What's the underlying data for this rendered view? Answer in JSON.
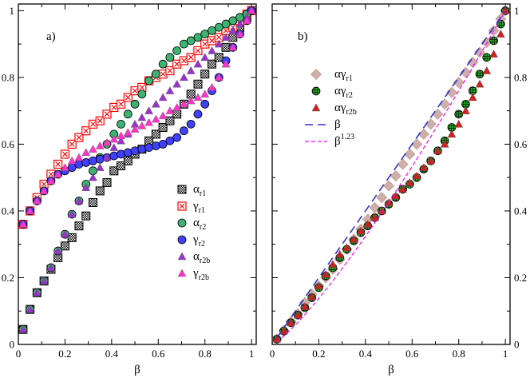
{
  "chart_data": [
    {
      "panel_label": "a)",
      "type": "scatter",
      "xlabel": "β",
      "xlim": [
        0,
        1.02
      ],
      "ylim": [
        0,
        1.02
      ],
      "xticks": [
        0,
        0.2,
        0.4,
        0.6,
        0.8,
        1
      ],
      "yticks": [
        0,
        0.2,
        0.4,
        0.6,
        0.8,
        1
      ],
      "xtick_labels": [
        "0",
        "0.2",
        "0.4",
        "0.6",
        "0.8",
        "1"
      ],
      "ytick_labels": [
        "0",
        "0.2",
        "0.4",
        "0.6",
        "0.8",
        "1"
      ],
      "legend_position": "center-right",
      "series": [
        {
          "name": "α",
          "sub": "r1",
          "marker": "checker-square",
          "color": "#000000",
          "x": [
            0.02,
            0.05,
            0.08,
            0.11,
            0.14,
            0.17,
            0.2,
            0.23,
            0.26,
            0.29,
            0.32,
            0.35,
            0.38,
            0.41,
            0.44,
            0.47,
            0.5,
            0.53,
            0.56,
            0.59,
            0.62,
            0.65,
            0.68,
            0.71,
            0.74,
            0.77,
            0.8,
            0.83,
            0.86,
            0.89,
            0.92,
            0.95,
            0.98,
            1.0
          ],
          "y": [
            0.045,
            0.105,
            0.155,
            0.19,
            0.225,
            0.26,
            0.295,
            0.32,
            0.355,
            0.385,
            0.425,
            0.46,
            0.485,
            0.52,
            0.535,
            0.55,
            0.57,
            0.585,
            0.61,
            0.63,
            0.65,
            0.67,
            0.69,
            0.72,
            0.75,
            0.78,
            0.81,
            0.84,
            0.86,
            0.89,
            0.92,
            0.95,
            0.98,
            1.0
          ]
        },
        {
          "name": "γ",
          "sub": "r1",
          "marker": "cross-square",
          "color": "#ff0000",
          "x": [
            0.02,
            0.05,
            0.08,
            0.11,
            0.14,
            0.17,
            0.2,
            0.23,
            0.26,
            0.29,
            0.32,
            0.35,
            0.38,
            0.41,
            0.44,
            0.47,
            0.5,
            0.53,
            0.56,
            0.59,
            0.62,
            0.65,
            0.68,
            0.71,
            0.74,
            0.77,
            0.8,
            0.83,
            0.86,
            0.89,
            0.92,
            0.95,
            0.98,
            1.0
          ],
          "y": [
            0.36,
            0.4,
            0.44,
            0.48,
            0.51,
            0.54,
            0.57,
            0.6,
            0.62,
            0.64,
            0.66,
            0.67,
            0.69,
            0.71,
            0.72,
            0.74,
            0.76,
            0.77,
            0.79,
            0.8,
            0.81,
            0.82,
            0.84,
            0.85,
            0.86,
            0.88,
            0.9,
            0.91,
            0.92,
            0.94,
            0.95,
            0.97,
            0.99,
            1.0
          ]
        },
        {
          "name": "α",
          "sub": "r2",
          "marker": "circle",
          "color": "#3cb371",
          "x": [
            0.02,
            0.05,
            0.08,
            0.11,
            0.14,
            0.17,
            0.2,
            0.23,
            0.26,
            0.29,
            0.32,
            0.35,
            0.38,
            0.41,
            0.44,
            0.47,
            0.5,
            0.53,
            0.56,
            0.59,
            0.62,
            0.65,
            0.68,
            0.71,
            0.74,
            0.77,
            0.8,
            0.83,
            0.86,
            0.89,
            0.92,
            0.95,
            0.98,
            1.0
          ],
          "y": [
            0.045,
            0.105,
            0.155,
            0.19,
            0.23,
            0.28,
            0.33,
            0.39,
            0.43,
            0.48,
            0.52,
            0.56,
            0.6,
            0.63,
            0.66,
            0.69,
            0.72,
            0.75,
            0.79,
            0.81,
            0.84,
            0.86,
            0.88,
            0.9,
            0.91,
            0.92,
            0.93,
            0.94,
            0.95,
            0.96,
            0.97,
            0.98,
            0.99,
            1.0
          ]
        },
        {
          "name": "γ",
          "sub": "r2",
          "marker": "circle",
          "color": "#4040ff",
          "x": [
            0.02,
            0.05,
            0.08,
            0.11,
            0.14,
            0.17,
            0.2,
            0.23,
            0.26,
            0.29,
            0.32,
            0.35,
            0.38,
            0.41,
            0.44,
            0.47,
            0.5,
            0.53,
            0.56,
            0.59,
            0.62,
            0.65,
            0.68,
            0.71,
            0.74,
            0.77,
            0.8,
            0.83,
            0.86,
            0.89,
            0.92,
            0.95,
            0.98,
            1.0
          ],
          "y": [
            0.36,
            0.4,
            0.43,
            0.46,
            0.49,
            0.51,
            0.52,
            0.53,
            0.54,
            0.545,
            0.55,
            0.555,
            0.56,
            0.565,
            0.57,
            0.575,
            0.58,
            0.585,
            0.59,
            0.595,
            0.6,
            0.61,
            0.62,
            0.64,
            0.66,
            0.69,
            0.72,
            0.76,
            0.8,
            0.85,
            0.89,
            0.93,
            0.97,
            1.0
          ]
        },
        {
          "name": "α",
          "sub": "r2b",
          "marker": "triangle",
          "color": "#9933cc",
          "x": [
            0.02,
            0.05,
            0.08,
            0.11,
            0.14,
            0.17,
            0.2,
            0.23,
            0.26,
            0.29,
            0.32,
            0.35,
            0.38,
            0.41,
            0.44,
            0.47,
            0.5,
            0.53,
            0.56,
            0.59,
            0.62,
            0.65,
            0.68,
            0.71,
            0.74,
            0.77,
            0.8,
            0.83,
            0.86,
            0.89,
            0.92,
            0.95,
            0.98,
            1.0
          ],
          "y": [
            0.045,
            0.105,
            0.155,
            0.19,
            0.23,
            0.28,
            0.33,
            0.39,
            0.43,
            0.47,
            0.5,
            0.53,
            0.56,
            0.59,
            0.61,
            0.63,
            0.66,
            0.68,
            0.7,
            0.72,
            0.74,
            0.76,
            0.78,
            0.8,
            0.82,
            0.84,
            0.86,
            0.88,
            0.9,
            0.92,
            0.94,
            0.96,
            0.98,
            1.0
          ]
        },
        {
          "name": "γ",
          "sub": "r2b",
          "marker": "triangle",
          "color": "#ff33cc",
          "x": [
            0.02,
            0.05,
            0.08,
            0.11,
            0.14,
            0.17,
            0.2,
            0.23,
            0.26,
            0.29,
            0.32,
            0.35,
            0.38,
            0.41,
            0.44,
            0.47,
            0.5,
            0.53,
            0.56,
            0.59,
            0.62,
            0.65,
            0.68,
            0.71,
            0.74,
            0.77,
            0.8,
            0.83,
            0.86,
            0.89,
            0.92,
            0.95,
            0.98,
            1.0
          ],
          "y": [
            0.36,
            0.4,
            0.43,
            0.46,
            0.49,
            0.51,
            0.53,
            0.55,
            0.56,
            0.575,
            0.585,
            0.595,
            0.605,
            0.615,
            0.625,
            0.635,
            0.645,
            0.655,
            0.665,
            0.675,
            0.685,
            0.7,
            0.71,
            0.72,
            0.73,
            0.74,
            0.75,
            0.77,
            0.8,
            0.84,
            0.89,
            0.93,
            0.97,
            1.0
          ]
        }
      ]
    },
    {
      "panel_label": "b)",
      "type": "scatter",
      "xlabel": "β",
      "xlim": [
        0,
        1.02
      ],
      "ylim": [
        0,
        1.02
      ],
      "xticks": [
        0,
        0.2,
        0.4,
        0.6,
        0.8,
        1
      ],
      "yticks": [
        0,
        0.2,
        0.4,
        0.6,
        0.8,
        1
      ],
      "xtick_labels": [
        "0",
        "0.2",
        "0.4",
        "0.6",
        "0.8",
        "1"
      ],
      "ytick_labels": [
        "0",
        "0.2",
        "0.4",
        "0.6",
        "0.8",
        "1"
      ],
      "y_ticks_side": "right",
      "legend_position": "upper-left",
      "series": [
        {
          "name": "αγ",
          "sub": "r1",
          "marker": "diamond",
          "color": "#c8a8a0",
          "x": [
            0.02,
            0.05,
            0.08,
            0.11,
            0.14,
            0.17,
            0.2,
            0.23,
            0.26,
            0.29,
            0.32,
            0.35,
            0.38,
            0.41,
            0.44,
            0.47,
            0.5,
            0.53,
            0.56,
            0.59,
            0.62,
            0.65,
            0.68,
            0.71,
            0.74,
            0.77,
            0.8,
            0.83,
            0.86,
            0.89,
            0.92,
            0.95,
            0.98,
            1.0
          ],
          "y": [
            0.016,
            0.042,
            0.068,
            0.092,
            0.125,
            0.15,
            0.175,
            0.2,
            0.225,
            0.255,
            0.285,
            0.315,
            0.345,
            0.375,
            0.41,
            0.44,
            0.475,
            0.505,
            0.54,
            0.57,
            0.6,
            0.63,
            0.66,
            0.69,
            0.72,
            0.755,
            0.785,
            0.815,
            0.845,
            0.875,
            0.905,
            0.94,
            0.975,
            1.0
          ]
        },
        {
          "name": "αγ",
          "sub": "r2",
          "marker": "hatched-circle",
          "color": "#22aa22",
          "x": [
            0.02,
            0.05,
            0.08,
            0.11,
            0.14,
            0.17,
            0.2,
            0.23,
            0.26,
            0.29,
            0.32,
            0.35,
            0.38,
            0.41,
            0.44,
            0.47,
            0.5,
            0.53,
            0.56,
            0.59,
            0.62,
            0.65,
            0.68,
            0.71,
            0.74,
            0.77,
            0.8,
            0.83,
            0.86,
            0.89,
            0.92,
            0.95,
            0.98,
            1.0
          ],
          "y": [
            0.016,
            0.04,
            0.065,
            0.088,
            0.11,
            0.14,
            0.17,
            0.205,
            0.23,
            0.26,
            0.285,
            0.31,
            0.335,
            0.355,
            0.38,
            0.4,
            0.42,
            0.44,
            0.465,
            0.48,
            0.5,
            0.525,
            0.55,
            0.58,
            0.61,
            0.65,
            0.69,
            0.72,
            0.76,
            0.81,
            0.86,
            0.91,
            0.96,
            1.0
          ]
        },
        {
          "name": "αγ",
          "sub": "r2b",
          "marker": "triangle",
          "color": "#cc2222",
          "x": [
            0.02,
            0.05,
            0.08,
            0.11,
            0.14,
            0.17,
            0.2,
            0.23,
            0.26,
            0.29,
            0.32,
            0.35,
            0.38,
            0.41,
            0.44,
            0.47,
            0.5,
            0.53,
            0.56,
            0.59,
            0.62,
            0.65,
            0.68,
            0.71,
            0.74,
            0.77,
            0.8,
            0.83,
            0.86,
            0.89,
            0.92,
            0.95,
            0.98,
            1.0
          ],
          "y": [
            0.016,
            0.04,
            0.065,
            0.088,
            0.113,
            0.143,
            0.175,
            0.21,
            0.24,
            0.27,
            0.29,
            0.315,
            0.34,
            0.36,
            0.38,
            0.4,
            0.425,
            0.445,
            0.465,
            0.485,
            0.505,
            0.53,
            0.55,
            0.58,
            0.6,
            0.63,
            0.66,
            0.7,
            0.74,
            0.78,
            0.82,
            0.87,
            0.93,
            1.0
          ]
        },
        {
          "name": "β",
          "sup": "",
          "line": "dash-long",
          "color": "#3333cc",
          "function": "y = β",
          "x_start": 0.02
        },
        {
          "name": "β",
          "sup": "1.23",
          "line": "dash-short",
          "color": "#ff00ff",
          "function": "y = β^1.23",
          "exponent": 1.23,
          "x_start": 0.02
        }
      ]
    }
  ]
}
